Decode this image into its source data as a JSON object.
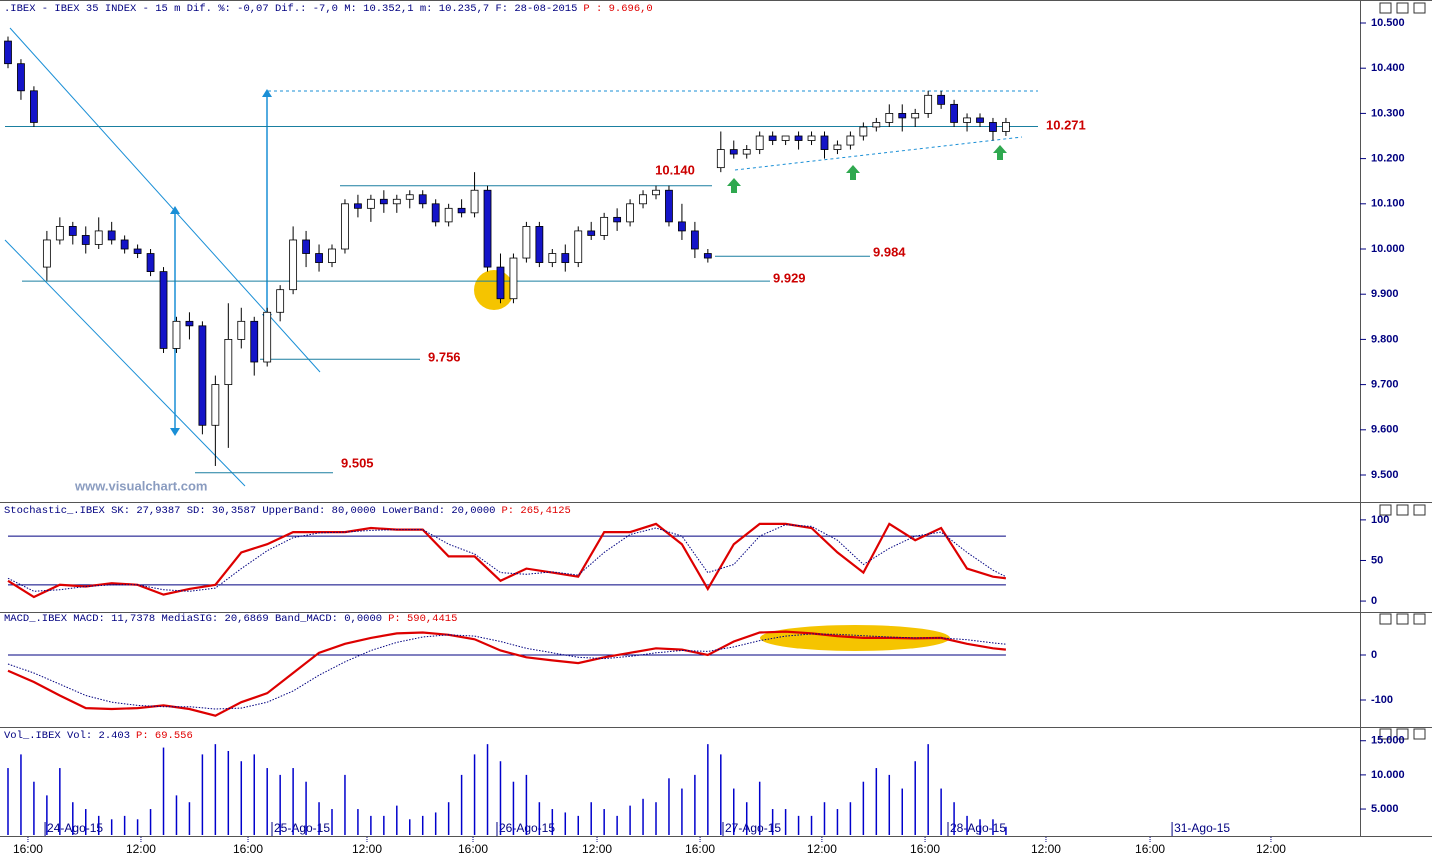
{
  "chart_data": [
    {
      "type": "candlestick",
      "title": ".IBEX - IBEX 35 INDEX -  15 m Dif. %: -0,07 Dif.: -7,0 M: 10.352,1 m: 10.235,7 F: 28-08-2015",
      "title_p": "P : 9.696,0",
      "watermark": "www.visualchart.com",
      "up_color": "#ffffff",
      "down_color": "#1414c8",
      "open": [
        10460,
        10410,
        10350,
        9960,
        10020,
        10050,
        10030,
        10010,
        10040,
        10020,
        10000,
        9990,
        9950,
        9780,
        9840,
        9830,
        9610,
        9700,
        9800,
        9840,
        9750,
        9860,
        9910,
        10020,
        9990,
        9970,
        10000,
        10100,
        10090,
        10110,
        10100,
        10110,
        10120,
        10100,
        10060,
        10090,
        10080,
        10130,
        9960,
        9890,
        9980,
        10050,
        9970,
        9990,
        9970,
        10040,
        10030,
        10070,
        10060,
        10100,
        10120,
        10130,
        10060,
        10040,
        9990,
        10180,
        10220,
        10210,
        10220,
        10250,
        10240,
        10250,
        10240,
        10250,
        10220,
        10230,
        10250,
        10270,
        10280,
        10300,
        10290,
        10300,
        10340,
        10320,
        10280,
        10290,
        10280,
        10260
      ],
      "high": [
        10470,
        10420,
        10360,
        10040,
        10070,
        10060,
        10050,
        10070,
        10060,
        10030,
        10010,
        10000,
        9960,
        9850,
        9860,
        9840,
        9720,
        9880,
        9870,
        9850,
        9870,
        9920,
        10050,
        10040,
        10010,
        10010,
        10110,
        10120,
        10120,
        10130,
        10120,
        10130,
        10130,
        10110,
        10100,
        10110,
        10170,
        10140,
        9990,
        9990,
        10060,
        10060,
        10000,
        10010,
        10050,
        10060,
        10080,
        10090,
        10110,
        10130,
        10140,
        10140,
        10100,
        10060,
        10000,
        10260,
        10240,
        10230,
        10260,
        10260,
        10250,
        10260,
        10260,
        10260,
        10240,
        10260,
        10280,
        10290,
        10320,
        10320,
        10310,
        10350,
        10350,
        10330,
        10300,
        10300,
        10290,
        10290
      ],
      "low": [
        10400,
        10330,
        10270,
        9930,
        10010,
        10010,
        9990,
        10000,
        10010,
        9990,
        9980,
        9940,
        9770,
        9770,
        9800,
        9590,
        9520,
        9560,
        9780,
        9720,
        9740,
        9840,
        9900,
        9960,
        9950,
        9960,
        9990,
        10070,
        10060,
        10080,
        10080,
        10090,
        10090,
        10050,
        10050,
        10070,
        10070,
        9950,
        9880,
        9880,
        9970,
        9960,
        9960,
        9950,
        9960,
        10020,
        10020,
        10040,
        10050,
        10090,
        10110,
        10050,
        10020,
        9980,
        9970,
        10170,
        10200,
        10200,
        10210,
        10230,
        10230,
        10220,
        10230,
        10200,
        10210,
        10220,
        10240,
        10260,
        10270,
        10260,
        10270,
        10290,
        10310,
        10270,
        10260,
        10270,
        10240,
        10250
      ],
      "close": [
        10410,
        10350,
        10280,
        10020,
        10050,
        10030,
        10010,
        10040,
        10020,
        10000,
        9990,
        9950,
        9780,
        9840,
        9830,
        9610,
        9700,
        9800,
        9840,
        9750,
        9860,
        9910,
        10020,
        9990,
        9970,
        10000,
        10100,
        10090,
        10110,
        10100,
        10110,
        10120,
        10100,
        10060,
        10090,
        10080,
        10130,
        9960,
        9890,
        9980,
        10050,
        9970,
        9990,
        9970,
        10040,
        10030,
        10070,
        10060,
        10100,
        10120,
        10130,
        10060,
        10040,
        10000,
        9980,
        10220,
        10210,
        10220,
        10250,
        10240,
        10250,
        10240,
        10250,
        10220,
        10230,
        10250,
        10270,
        10280,
        10300,
        10290,
        10300,
        10340,
        10320,
        10280,
        10290,
        10280,
        10260,
        10280
      ],
      "xlim": [
        -0.617,
        104.32
      ],
      "ylim": [
        9444.7,
        10517.7
      ],
      "yticks": [
        {
          "value": 9500,
          "label": "9.500"
        },
        {
          "value": 9600,
          "label": "9.600"
        },
        {
          "value": 9700,
          "label": "9.700"
        },
        {
          "value": 9800,
          "label": "9.800"
        },
        {
          "value": 9900,
          "label": "9.900"
        },
        {
          "value": 10000,
          "label": "10.000"
        },
        {
          "value": 10100,
          "label": "10.100"
        },
        {
          "value": 10200,
          "label": "10.200"
        },
        {
          "value": 10300,
          "label": "10.300"
        },
        {
          "value": 10400,
          "label": "10.400"
        },
        {
          "value": 10500,
          "label": "10.500"
        }
      ],
      "xticks": [
        {
          "value": 1.54,
          "label": "16:00"
        },
        {
          "value": 10.26,
          "label": "12:00"
        },
        {
          "value": 18.52,
          "label": "16:00"
        },
        {
          "value": 27.7,
          "label": "12:00"
        },
        {
          "value": 35.88,
          "label": "16:00"
        },
        {
          "value": 45.45,
          "label": "12:00"
        },
        {
          "value": 53.4,
          "label": "16:00"
        },
        {
          "value": 62.8,
          "label": "12:00"
        },
        {
          "value": 70.76,
          "label": "16:00"
        },
        {
          "value": 80.09,
          "label": "12:00"
        },
        {
          "value": 88.12,
          "label": "16:00"
        },
        {
          "value": 97.45,
          "label": "12:00"
        }
      ],
      "date_ticks": [
        {
          "value": 2.86,
          "label": "24-Ago-15"
        },
        {
          "value": 20.37,
          "label": "25-Ago-15"
        },
        {
          "value": 37.73,
          "label": "26-Ago-15"
        },
        {
          "value": 55.17,
          "label": "27-Ago-15"
        },
        {
          "value": 72.53,
          "label": "28-Ago-15"
        },
        {
          "value": 89.82,
          "label": "31-Ago-15"
        }
      ],
      "levels": [
        {
          "value": 10271,
          "label": "10.271"
        },
        {
          "value": 10140,
          "label": "10.140"
        },
        {
          "value": 9984,
          "label": "9.984"
        },
        {
          "value": 9929,
          "label": "9.929"
        },
        {
          "value": 9756,
          "label": "9.756"
        },
        {
          "value": 9505,
          "label": "9.505"
        }
      ]
    },
    {
      "type": "line",
      "title": "Stochastic_.IBEX SK: 27,9387 SD: 30,3587 UpperBand: 80,0000 LowerBand: 20,0000",
      "title_p": "P: 265,4125",
      "x": [
        0,
        2,
        4,
        6,
        8,
        10,
        12,
        14,
        16,
        18,
        20,
        22,
        24,
        26,
        28,
        30,
        32,
        34,
        36,
        38,
        40,
        42,
        44,
        46,
        48,
        50,
        52,
        54,
        56,
        58,
        60,
        62,
        64,
        66,
        68,
        70,
        72,
        74,
        76,
        77
      ],
      "series": [
        {
          "color": "#dd0000",
          "values": [
            25,
            5,
            20,
            18,
            22,
            20,
            8,
            15,
            20,
            60,
            70,
            85,
            85,
            85,
            90,
            88,
            88,
            55,
            55,
            25,
            40,
            35,
            30,
            85,
            85,
            95,
            70,
            15,
            70,
            95,
            95,
            90,
            60,
            35,
            95,
            75,
            90,
            40,
            30,
            28
          ]
        },
        {
          "color": "#000080",
          "dotted": true,
          "values": [
            28,
            12,
            14,
            18,
            20,
            20,
            14,
            12,
            16,
            40,
            62,
            78,
            84,
            85,
            87,
            88,
            88,
            70,
            58,
            35,
            33,
            36,
            32,
            60,
            82,
            90,
            80,
            35,
            45,
            80,
            94,
            92,
            75,
            45,
            65,
            80,
            85,
            60,
            38,
            30
          ]
        }
      ],
      "ylim": [
        -11,
        106
      ],
      "yticks": [
        0,
        50,
        100
      ],
      "bands": [
        80,
        20
      ]
    },
    {
      "type": "line",
      "title": "MACD_.IBEX MACD: 11,7378 MediaSIG: 20,6869 Band_MACD: 0,0000",
      "title_p": "P: 590,4415",
      "x": [
        0,
        2,
        4,
        6,
        8,
        10,
        12,
        14,
        16,
        18,
        20,
        22,
        24,
        26,
        28,
        30,
        32,
        34,
        36,
        38,
        40,
        42,
        44,
        46,
        48,
        50,
        52,
        54,
        56,
        58,
        60,
        62,
        64,
        66,
        68,
        70,
        72,
        74,
        76,
        77
      ],
      "series": [
        {
          "color": "#dd0000",
          "values": [
            -35,
            -60,
            -90,
            -118,
            -120,
            -118,
            -112,
            -120,
            -135,
            -105,
            -85,
            -40,
            5,
            25,
            38,
            48,
            50,
            45,
            35,
            10,
            -5,
            -12,
            -18,
            -5,
            5,
            15,
            12,
            0,
            30,
            50,
            52,
            48,
            42,
            38,
            38,
            37,
            38,
            25,
            15,
            12
          ]
        },
        {
          "color": "#000080",
          "dotted": true,
          "values": [
            -20,
            -40,
            -65,
            -90,
            -105,
            -112,
            -115,
            -115,
            -120,
            -118,
            -105,
            -80,
            -45,
            -15,
            10,
            28,
            40,
            45,
            42,
            30,
            15,
            5,
            -5,
            -8,
            -3,
            5,
            10,
            8,
            18,
            32,
            42,
            47,
            46,
            43,
            40,
            38,
            38,
            34,
            27,
            24
          ]
        }
      ],
      "ylim": [
        -155.6,
        66.7
      ],
      "yticks": [
        -100,
        0
      ],
      "bands": [
        0
      ]
    },
    {
      "type": "bar",
      "title": "Vol_.IBEX Vol: 2.403",
      "title_p": "P: 69.556",
      "color": "#0000cc",
      "values": [
        11000,
        13000,
        9000,
        7000,
        11000,
        6000,
        5000,
        4000,
        3500,
        4000,
        3500,
        5000,
        14000,
        7000,
        6000,
        13000,
        14500,
        13500,
        12000,
        13000,
        11000,
        10000,
        11000,
        9000,
        6000,
        5000,
        10000,
        5000,
        4000,
        4000,
        5500,
        3500,
        4000,
        4500,
        6000,
        10000,
        13000,
        14500,
        12000,
        9000,
        10000,
        6000,
        5000,
        4500,
        4000,
        6000,
        5000,
        4000,
        5500,
        6500,
        6000,
        9500,
        8000,
        10000,
        14500,
        13000,
        8000,
        6000,
        9000,
        5000,
        5000,
        4000,
        4000,
        6000,
        5000,
        6000,
        9000,
        11000,
        10000,
        8000,
        12000,
        14500,
        8000,
        6000,
        4000,
        3500,
        3500,
        2403
      ],
      "ylim": [
        1200,
        15400
      ],
      "yticks": [
        {
          "value": 5000,
          "label": "5.000"
        },
        {
          "value": 10000,
          "label": "10.000"
        },
        {
          "value": 15000,
          "label": "15.000"
        }
      ]
    }
  ]
}
